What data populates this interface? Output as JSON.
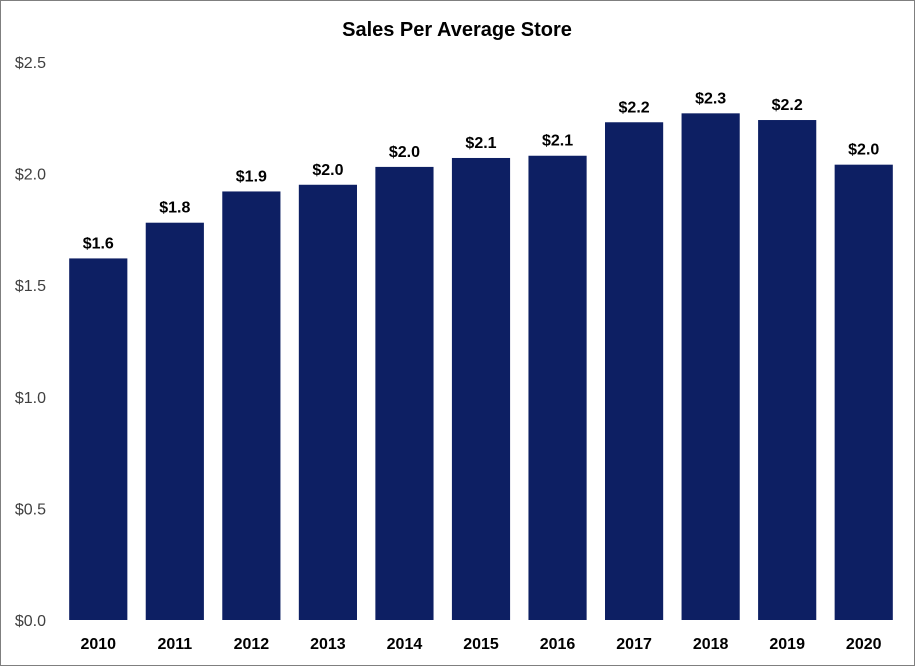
{
  "chart_data": {
    "type": "bar",
    "title": "Sales Per Average Store",
    "xlabel": "",
    "ylabel": "",
    "categories": [
      "2010",
      "2011",
      "2012",
      "2013",
      "2014",
      "2015",
      "2016",
      "2017",
      "2018",
      "2019",
      "2020"
    ],
    "values": [
      1.62,
      1.78,
      1.92,
      1.95,
      2.03,
      2.07,
      2.08,
      2.23,
      2.27,
      2.24,
      2.04
    ],
    "data_labels": [
      "$1.6",
      "$1.8",
      "$1.9",
      "$2.0",
      "$2.0",
      "$2.1",
      "$2.1",
      "$2.2",
      "$2.3",
      "$2.2",
      "$2.0"
    ],
    "ylim": [
      0,
      2.5
    ],
    "yticks": [
      0,
      0.5,
      1.0,
      1.5,
      2.0,
      2.5
    ],
    "ytick_labels": [
      "$0.0",
      "$0.5",
      "$1.0",
      "$1.5",
      "$2.0",
      "$2.5"
    ],
    "grid": false,
    "legend": "none",
    "bar_color": "#0d1f63"
  }
}
